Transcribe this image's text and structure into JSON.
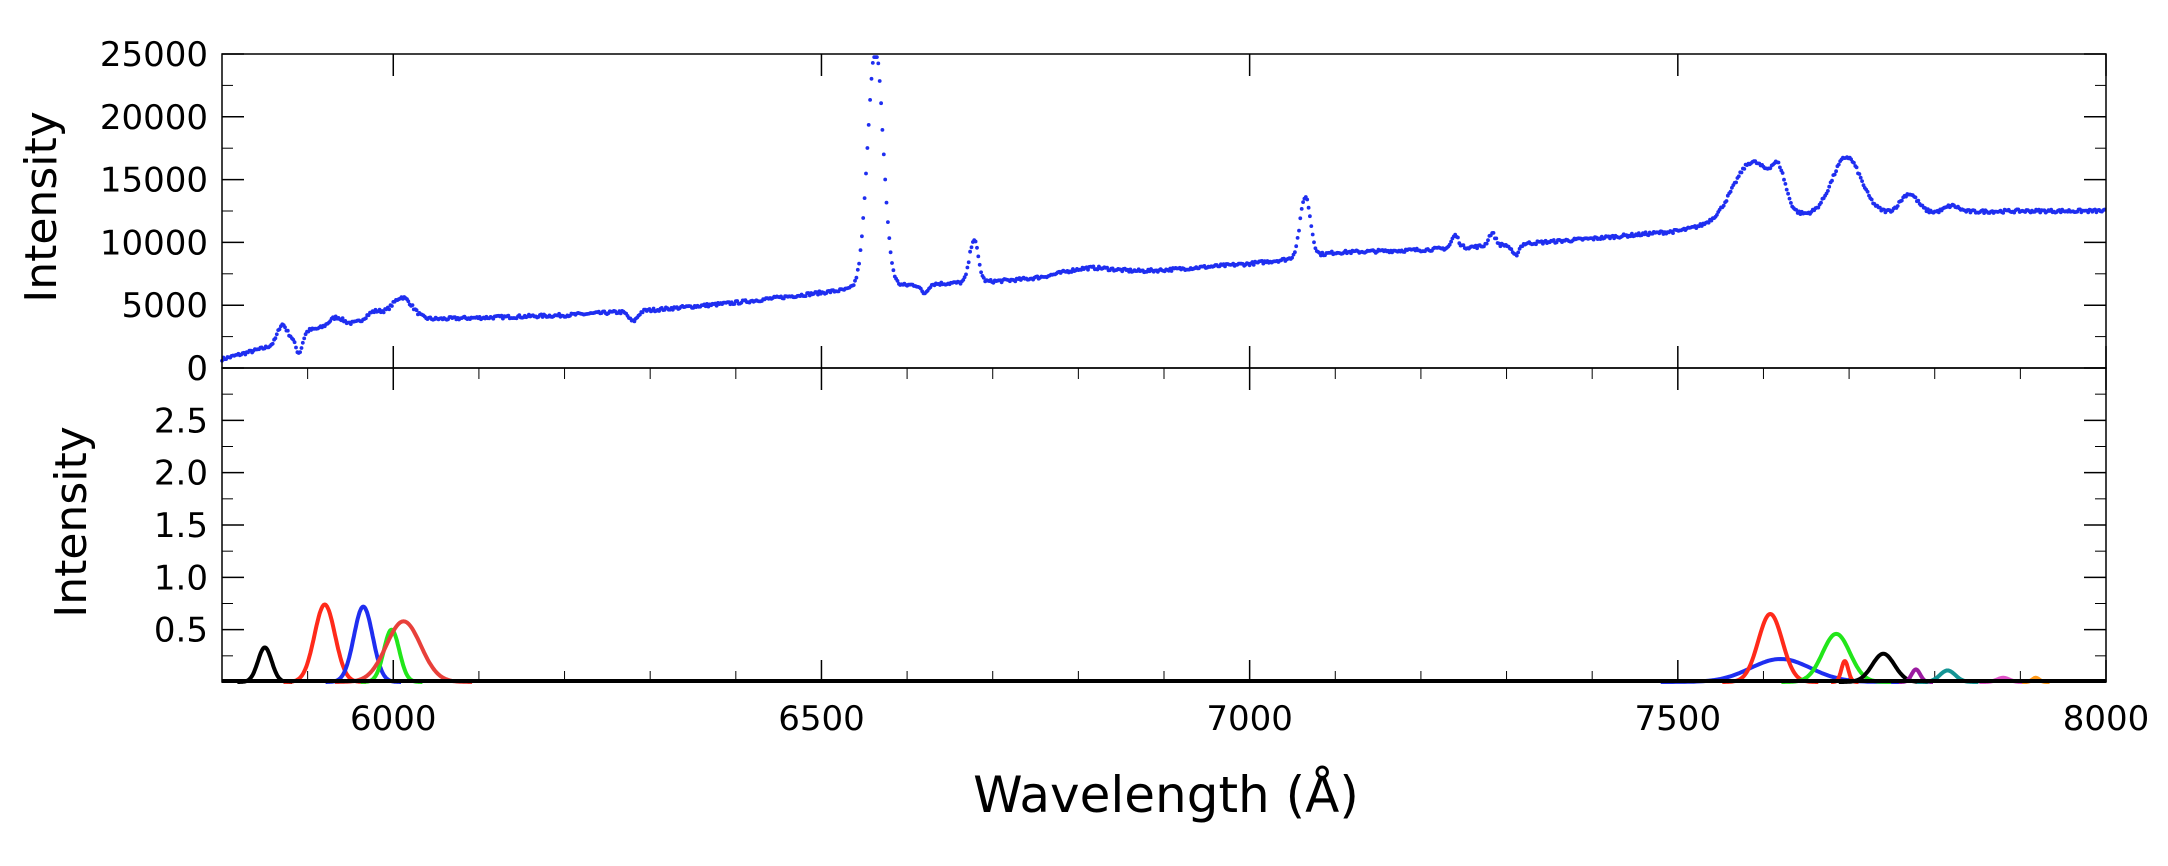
{
  "chart_data": [
    {
      "type": "scatter",
      "panel": "top",
      "title": "",
      "xlabel": "",
      "ylabel": "Intensity",
      "xlim": [
        5800,
        8000
      ],
      "ylim": [
        0,
        25000
      ],
      "yticks": [
        0,
        5000,
        10000,
        15000,
        20000,
        25000
      ],
      "ytick_labels": [
        "0",
        "5000",
        "10000",
        "15000",
        "20000",
        "25000"
      ],
      "color": "#1f2ef0",
      "continuum": [
        [
          5800,
          700
        ],
        [
          5850,
          1600
        ],
        [
          5900,
          3000
        ],
        [
          5950,
          3500
        ],
        [
          6000,
          3800
        ],
        [
          6050,
          3900
        ],
        [
          6100,
          4000
        ],
        [
          6200,
          4200
        ],
        [
          6300,
          4600
        ],
        [
          6400,
          5200
        ],
        [
          6500,
          6000
        ],
        [
          6550,
          6400
        ],
        [
          6600,
          6600
        ],
        [
          6700,
          6900
        ],
        [
          6800,
          7300
        ],
        [
          6900,
          7800
        ],
        [
          7000,
          8300
        ],
        [
          7050,
          8700
        ],
        [
          7100,
          9200
        ],
        [
          7200,
          9400
        ],
        [
          7300,
          9800
        ],
        [
          7400,
          10300
        ],
        [
          7500,
          10900
        ],
        [
          7560,
          11700
        ],
        [
          7600,
          12000
        ],
        [
          7700,
          12300
        ],
        [
          7800,
          12400
        ],
        [
          7900,
          12500
        ],
        [
          8000,
          12500
        ]
      ],
      "features": [
        {
          "center": 5870,
          "width": 5,
          "amp": 1300
        },
        {
          "center": 5933,
          "width": 8,
          "amp": 700
        },
        {
          "center": 5978,
          "width": 10,
          "amp": 800
        },
        {
          "center": 6010,
          "width": 12,
          "amp": 1800
        },
        {
          "center": 6563,
          "width": 9,
          "amp": 19000
        },
        {
          "center": 6678,
          "width": 5,
          "amp": 3400
        },
        {
          "center": 6810,
          "width": 30,
          "amp": 600
        },
        {
          "center": 7065,
          "width": 6,
          "amp": 4800
        },
        {
          "center": 7240,
          "width": 4,
          "amp": 1000
        },
        {
          "center": 7283,
          "width": 4,
          "amp": 1000
        },
        {
          "center": 7587,
          "width": 22,
          "amp": 4500
        },
        {
          "center": 7618,
          "width": 8,
          "amp": 2500
        },
        {
          "center": 7697,
          "width": 17,
          "amp": 4500
        },
        {
          "center": 7770,
          "width": 10,
          "amp": 1500
        },
        {
          "center": 7820,
          "width": 8,
          "amp": 500
        }
      ],
      "dips": [
        {
          "center": 5890,
          "width": 4,
          "depth": 1500
        },
        {
          "center": 6280,
          "width": 5,
          "depth": 800
        },
        {
          "center": 6620,
          "width": 4,
          "depth": 700
        },
        {
          "center": 7310,
          "width": 4,
          "depth": 900
        }
      ]
    },
    {
      "type": "line",
      "panel": "bottom",
      "title": "",
      "xlabel": "Wavelength (Å)",
      "ylabel": "Intensity",
      "xlim": [
        5800,
        8000
      ],
      "ylim": [
        0,
        3.0
      ],
      "yticks": [
        0.5,
        1.0,
        1.5,
        2.0,
        2.5
      ],
      "ytick_labels": [
        "0.5",
        "1.0",
        "1.5",
        "2.0",
        "2.5"
      ],
      "xticks": [
        6000,
        6500,
        7000,
        7500,
        8000
      ],
      "xtick_labels": [
        "6000",
        "6500",
        "7000",
        "7500",
        "8000"
      ],
      "series": [
        {
          "name": "black 5850",
          "color": "#000000",
          "center": 5850,
          "sigma": 8,
          "amp": 0.33
        },
        {
          "name": "red 5920",
          "color": "#ff2a1a",
          "center": 5920,
          "sigma": 12,
          "amp": 0.74
        },
        {
          "name": "blue 5965",
          "color": "#1f2ef0",
          "center": 5965,
          "sigma": 11,
          "amp": 0.72
        },
        {
          "name": "green 5998",
          "color": "#22e61a",
          "center": 5998,
          "sigma": 9,
          "amp": 0.5
        },
        {
          "name": "red 6012",
          "color": "#e8403a",
          "center": 6012,
          "sigma": 20,
          "amp": 0.58
        },
        {
          "name": "blue 7620",
          "color": "#1f2ef0",
          "center": 7620,
          "sigma": 35,
          "amp": 0.22
        },
        {
          "name": "red 7608",
          "color": "#ff2a1a",
          "center": 7608,
          "sigma": 14,
          "amp": 0.65
        },
        {
          "name": "green 7685",
          "color": "#22e61a",
          "center": 7685,
          "sigma": 16,
          "amp": 0.46
        },
        {
          "name": "red 7695",
          "color": "#ff2a1a",
          "center": 7695,
          "sigma": 4,
          "amp": 0.2
        },
        {
          "name": "black 7740",
          "color": "#000000",
          "center": 7740,
          "sigma": 13,
          "amp": 0.27
        },
        {
          "name": "purple 7778",
          "color": "#9b1aa0",
          "center": 7778,
          "sigma": 5,
          "amp": 0.12
        },
        {
          "name": "teal 7815",
          "color": "#149494",
          "center": 7815,
          "sigma": 9,
          "amp": 0.11
        },
        {
          "name": "magenta 7880",
          "color": "#e052c8",
          "center": 7880,
          "sigma": 7,
          "amp": 0.04
        },
        {
          "name": "orange 7918",
          "color": "#ff9a1a",
          "center": 7918,
          "sigma": 4,
          "amp": 0.04
        }
      ]
    }
  ]
}
